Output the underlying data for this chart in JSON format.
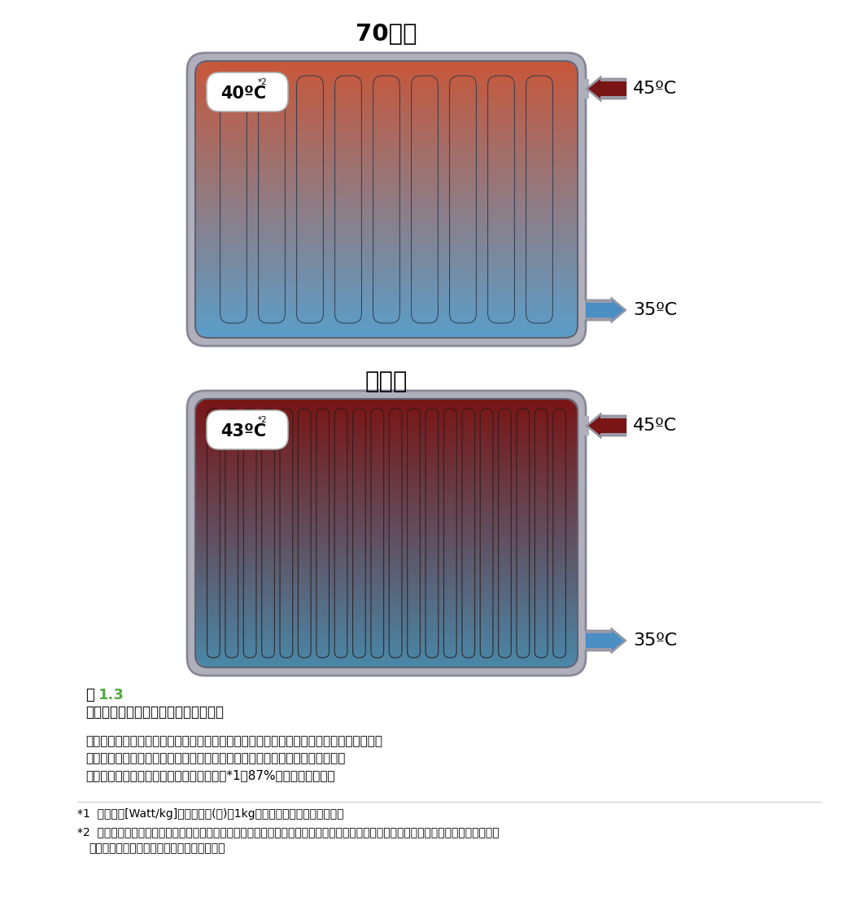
{
  "title1": "70年代",
  "title2": "現　在",
  "panel1": {
    "temp_label": "40ºC",
    "temp_superscript": "*2",
    "inlet_temp": "45ºC",
    "outlet_temp": "35ºC",
    "num_channels": 9,
    "color_top": "#C8573A",
    "color_bottom": "#5B9EC9",
    "channel_color": "#2A3A4A"
  },
  "panel2": {
    "temp_label": "43ºC",
    "temp_superscript": "*2",
    "inlet_temp": "45ºC",
    "outlet_temp": "35ºC",
    "num_channels": 20,
    "color_top": "#7A1515",
    "color_bottom": "#4A88A8",
    "channel_color": "#2A1A1A"
  },
  "caption_fig": "図",
  "caption_num": "1.3",
  "caption_title": "鋼板製温水パネルヒーターの技術革新",
  "caption_body1": "水路とフィンが増えて少ない熱質量になりました。　－　最新の温水パネルヒーターは、",
  "caption_body2": "従来のモデルと同じ温度でも、より少ない保有水量で放熱量を増加させます。",
  "caption_body3": "さらに、材料の観点から見ると、材料効率*1が87%向上しています。",
  "footnote1": "*1  材料効率[Watt/kg]：スチール(鉄)の1kgに対する放熱量を示します。",
  "footnote2": "*2  平均温度ではありません。温水パネルヒーターの水路部分の形状とフィンの取付位置の工夫で放熱量が増加し、温水流量も増えたた",
  "footnote2b": "め、ヘッダー端部の温度が上昇しています。",
  "bg_color": "#FFFFFF",
  "inlet_arrow_color": "#7A1515",
  "outlet_arrow_color": "#4A8EC4",
  "frame_outer_color": "#A8A8B0",
  "frame_inner_color": "#C8C8D0"
}
